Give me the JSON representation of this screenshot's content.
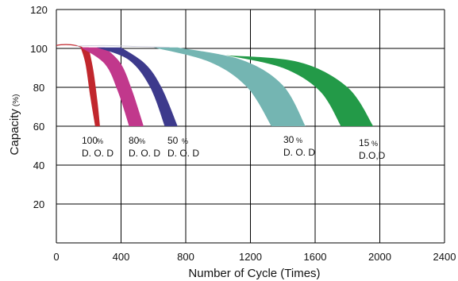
{
  "chart_data": {
    "type": "area",
    "title": "",
    "xlabel": "Number  of  Cycle (Times)",
    "ylabel": "Capacity",
    "ylabel_unit": "(%)",
    "xlim": [
      0,
      2400
    ],
    "ylim": [
      0,
      120
    ],
    "x_ticks": [
      "0",
      "400",
      "800",
      "1200",
      "1600",
      "2000",
      "2400"
    ],
    "y_ticks": [
      "20",
      "40",
      "60",
      "80",
      "100",
      "120"
    ],
    "grid": true,
    "series": [
      {
        "name_parts": [
          "100",
          "%",
          "D. O. D"
        ],
        "color": "#c1272d",
        "top_curve": [
          [
            200,
            100.5
          ],
          [
            230,
            88
          ],
          [
            255,
            72
          ],
          [
            270,
            60
          ]
        ],
        "bottom_curve": [
          [
            150,
            100.5
          ],
          [
            180,
            92
          ],
          [
            210,
            75
          ],
          [
            240,
            60
          ]
        ]
      },
      {
        "name_parts": [
          "80",
          "%",
          "D. O. D"
        ],
        "color": "#c1388c",
        "top_curve": [
          [
            300,
            100.5
          ],
          [
            400,
            92
          ],
          [
            470,
            78
          ],
          [
            540,
            60
          ]
        ],
        "bottom_curve": [
          [
            150,
            100.5
          ],
          [
            300,
            92
          ],
          [
            380,
            78
          ],
          [
            450,
            60
          ]
        ]
      },
      {
        "name_parts": [
          "50",
          "%",
          "D. O. D"
        ],
        "color": "#3d3a8c",
        "top_curve": [
          [
            400,
            100.5
          ],
          [
            550,
            92
          ],
          [
            650,
            80
          ],
          [
            750,
            60
          ]
        ],
        "bottom_curve": [
          [
            250,
            100.5
          ],
          [
            450,
            94
          ],
          [
            580,
            80
          ],
          [
            670,
            60
          ]
        ]
      },
      {
        "name_parts": [
          "30",
          "%",
          "D. O. D"
        ],
        "color": "#74b5b2",
        "top_curve": [
          [
            750,
            100.5
          ],
          [
            1150,
            94
          ],
          [
            1400,
            81
          ],
          [
            1540,
            60
          ]
        ],
        "bottom_curve": [
          [
            600,
            100.5
          ],
          [
            950,
            93
          ],
          [
            1180,
            80
          ],
          [
            1330,
            60
          ]
        ]
      },
      {
        "name_parts": [
          "15",
          "%",
          "D.O,D"
        ],
        "color": "#239a48",
        "top_curve": [
          [
            1050,
            96.5
          ],
          [
            1500,
            93
          ],
          [
            1800,
            80
          ],
          [
            1960,
            60
          ]
        ],
        "bottom_curve": [
          [
            1050,
            96.5
          ],
          [
            1400,
            90
          ],
          [
            1630,
            78
          ],
          [
            1760,
            60
          ]
        ]
      }
    ],
    "initial_curve": {
      "color": "#c1272d",
      "points": [
        [
          -40,
          100
        ],
        [
          0,
          101.5
        ],
        [
          60,
          102
        ],
        [
          120,
          101.5
        ],
        [
          160,
          100.5
        ]
      ]
    }
  }
}
